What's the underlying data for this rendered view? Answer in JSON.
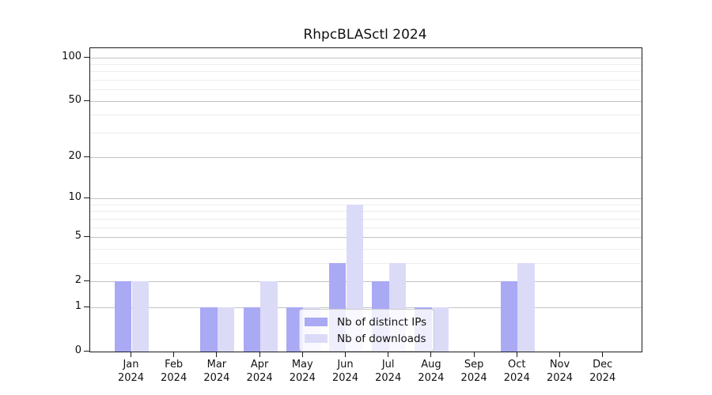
{
  "title": "RhpcBLASctl 2024",
  "legend": {
    "items": [
      {
        "label": "Nb of distinct IPs",
        "color": "#a9a9f4"
      },
      {
        "label": "Nb of downloads",
        "color": "#dbdbf8"
      }
    ]
  },
  "colors": {
    "bar_distinct_ips": "#a9a9f4",
    "bar_downloads": "#dbdbf8",
    "major_grid": "#c3c3c3",
    "minor_grid": "#ededed",
    "axis": "#1a1a1a"
  },
  "chart_data": {
    "type": "bar",
    "title": "RhpcBLASctl 2024",
    "categories": [
      "Jan",
      "Feb",
      "Mar",
      "Apr",
      "May",
      "Jun",
      "Jul",
      "Aug",
      "Sep",
      "Oct",
      "Nov",
      "Dec"
    ],
    "category_year": "2024",
    "series": [
      {
        "name": "Nb of distinct IPs",
        "color": "#a9a9f4",
        "values": [
          2,
          0,
          1,
          1,
          1,
          3,
          2,
          1,
          0,
          2,
          0,
          0
        ]
      },
      {
        "name": "Nb of downloads",
        "color": "#dbdbf8",
        "values": [
          2,
          0,
          1,
          2,
          1,
          9,
          3,
          1,
          0,
          3,
          0,
          0
        ]
      }
    ],
    "yscale": "log1p",
    "y_major_ticks": [
      0,
      1,
      2,
      5,
      10,
      20,
      50,
      100
    ],
    "y_minor_gridlines": [
      3,
      4,
      6,
      7,
      8,
      9,
      30,
      40,
      60,
      70,
      80,
      90
    ],
    "ylim": [
      0,
      116
    ],
    "xlabel": "",
    "ylabel": "",
    "grid": true,
    "legend_position": "inside lower center"
  }
}
